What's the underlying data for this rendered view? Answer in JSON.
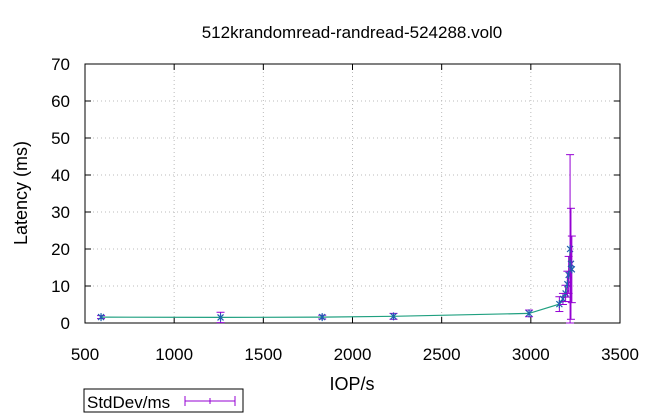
{
  "chart_data": {
    "type": "line",
    "title": "512krandomread-randread-524288.vol0",
    "xlabel": "IOP/s",
    "ylabel": "Latency (ms)",
    "xlim": [
      500,
      3500
    ],
    "ylim": [
      0,
      70
    ],
    "xticks": [
      500,
      1000,
      1500,
      2000,
      2500,
      3000,
      3500
    ],
    "yticks": [
      0,
      10,
      20,
      30,
      40,
      50,
      60,
      70
    ],
    "grid": true,
    "legend": {
      "position": "bottom-left",
      "entries": [
        "StdDev/ms"
      ]
    },
    "colors": {
      "line": "#20a080",
      "marker": "#1f5faf",
      "errorbar": "#9400d3"
    },
    "series": [
      {
        "name": "StdDev/ms",
        "points": [
          {
            "x": 590,
            "y": 1.6,
            "err": 0.4
          },
          {
            "x": 1260,
            "y": 1.5,
            "err": 1.4
          },
          {
            "x": 1830,
            "y": 1.6,
            "err": 0.5
          },
          {
            "x": 2230,
            "y": 1.8,
            "err": 0.8
          },
          {
            "x": 2990,
            "y": 2.6,
            "err": 0.9
          },
          {
            "x": 3160,
            "y": 5.1,
            "err": 2.0
          },
          {
            "x": 3180,
            "y": 6.5,
            "err": 1.5
          },
          {
            "x": 3195,
            "y": 8.0,
            "err": 2.2
          },
          {
            "x": 3205,
            "y": 10.5,
            "err": 3.5
          },
          {
            "x": 3212,
            "y": 13.0,
            "err": 5.0
          },
          {
            "x": 3220,
            "y": 20.0,
            "err": 25.5
          },
          {
            "x": 3225,
            "y": 16.0,
            "err": 15.0
          },
          {
            "x": 3230,
            "y": 14.5,
            "err": 9.0
          }
        ]
      }
    ]
  }
}
